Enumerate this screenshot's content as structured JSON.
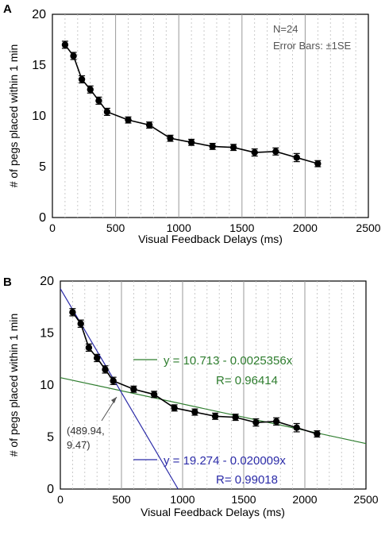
{
  "panels": [
    {
      "letter": "A"
    },
    {
      "letter": "B"
    }
  ],
  "chart_data": [
    {
      "type": "scatter",
      "panel": "A",
      "xlabel": "Visual Feedback Delays (ms)",
      "ylabel": "# of pegs placed within 1 min",
      "xlim": [
        0,
        2500
      ],
      "ylim": [
        0,
        20
      ],
      "xticks": [
        0,
        500,
        1000,
        1500,
        2000,
        2500
      ],
      "yticks": [
        0,
        5,
        10,
        15,
        20
      ],
      "grid": "vertical",
      "annotations": [
        "N=24",
        "Error Bars: ±1SE"
      ],
      "series": [
        {
          "x": [
            100,
            167,
            233,
            300,
            367,
            433,
            600,
            767,
            933,
            1100,
            1267,
            1433,
            1600,
            1767,
            1933,
            2100
          ],
          "y": [
            17.0,
            15.9,
            13.6,
            12.6,
            11.5,
            10.4,
            9.6,
            9.1,
            7.8,
            7.4,
            7.0,
            6.9,
            6.4,
            6.5,
            5.9,
            5.3
          ],
          "error": [
            0.35,
            0.35,
            0.35,
            0.35,
            0.35,
            0.35,
            0.3,
            0.3,
            0.3,
            0.3,
            0.3,
            0.3,
            0.35,
            0.35,
            0.4,
            0.3
          ]
        }
      ]
    },
    {
      "type": "scatter",
      "panel": "B",
      "xlabel": "Visual Feedback Delays (ms)",
      "ylabel": "# of pegs placed within 1 min",
      "xlim": [
        0,
        2500
      ],
      "ylim": [
        0,
        20
      ],
      "xticks": [
        0,
        500,
        1000,
        1500,
        2000,
        2500
      ],
      "yticks": [
        0,
        5,
        10,
        15,
        20
      ],
      "grid": "vertical",
      "series": [
        {
          "x": [
            100,
            167,
            233,
            300,
            367,
            433,
            600,
            767,
            933,
            1100,
            1267,
            1433,
            1600,
            1767,
            1933,
            2100
          ],
          "y": [
            17.0,
            15.9,
            13.6,
            12.6,
            11.5,
            10.4,
            9.6,
            9.1,
            7.8,
            7.4,
            7.0,
            6.9,
            6.4,
            6.5,
            5.9,
            5.3
          ],
          "error": [
            0.35,
            0.35,
            0.35,
            0.35,
            0.35,
            0.35,
            0.3,
            0.3,
            0.3,
            0.3,
            0.3,
            0.3,
            0.35,
            0.35,
            0.4,
            0.3
          ]
        }
      ],
      "fits": [
        {
          "color": "#2e7d2e",
          "equation": "y = 10.713 - 0.0025356x",
          "r_label": "R= 0.96414",
          "intercept": 10.713,
          "slope": -0.0025356
        },
        {
          "color": "#2b2ba8",
          "equation": "y = 19.274 - 0.020009x",
          "r_label": "R= 0.99018",
          "intercept": 19.274,
          "slope": -0.020009
        }
      ],
      "intersection": {
        "x": 489.94,
        "y": 9.47,
        "label_line1": "(489.94,",
        "label_line2": "9.47)"
      }
    }
  ]
}
